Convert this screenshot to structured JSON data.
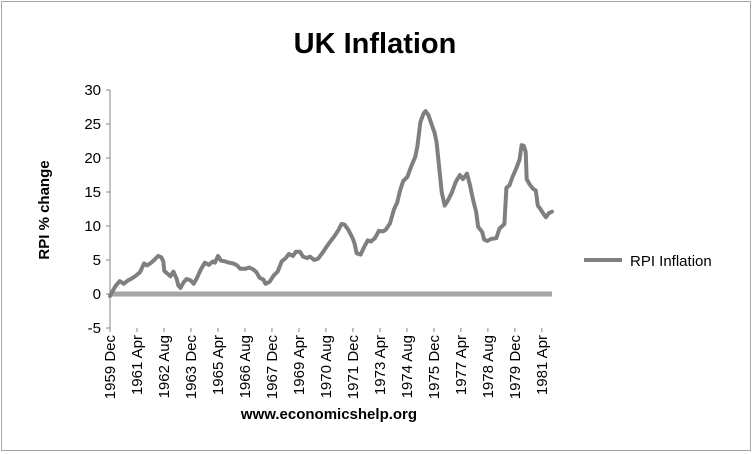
{
  "chart_data": {
    "type": "line",
    "title": "UK Inflation",
    "ylabel": "RPI % change",
    "xlabel": "www.economicshelp.org",
    "ylim": [
      -5,
      30
    ],
    "yticks": [
      -5,
      0,
      5,
      10,
      15,
      20,
      25,
      30
    ],
    "xlim": [
      1959.917,
      1981.75
    ],
    "x_ticks": [
      {
        "label": "1959 Dec",
        "x": 1959.917
      },
      {
        "label": "1961 Apr",
        "x": 1961.25
      },
      {
        "label": "1962 Aug",
        "x": 1962.583
      },
      {
        "label": "1963 Dec",
        "x": 1963.917
      },
      {
        "label": "1965 Apr",
        "x": 1965.25
      },
      {
        "label": "1966 Aug",
        "x": 1966.583
      },
      {
        "label": "1967 Dec",
        "x": 1967.917
      },
      {
        "label": "1969 Apr",
        "x": 1969.25
      },
      {
        "label": "1970 Aug",
        "x": 1970.583
      },
      {
        "label": "1971 Dec",
        "x": 1971.917
      },
      {
        "label": "1973 Apr",
        "x": 1973.25
      },
      {
        "label": "1974 Aug",
        "x": 1974.583
      },
      {
        "label": "1975 Dec",
        "x": 1975.917
      },
      {
        "label": "1977 Apr",
        "x": 1977.25
      },
      {
        "label": "1978 Aug",
        "x": 1978.583
      },
      {
        "label": "1979 Dec",
        "x": 1979.917
      },
      {
        "label": "1981 Apr",
        "x": 1981.25
      }
    ],
    "grid": false,
    "legend": "right",
    "line_color": "#7f7f7f",
    "series": [
      {
        "name": "RPI Inflation",
        "points": [
          [
            1959.917,
            -0.3
          ],
          [
            1960.0,
            0.2
          ],
          [
            1960.2,
            1.2
          ],
          [
            1960.4,
            1.9
          ],
          [
            1960.6,
            1.5
          ],
          [
            1960.8,
            2.0
          ],
          [
            1961.0,
            2.3
          ],
          [
            1961.2,
            2.7
          ],
          [
            1961.4,
            3.2
          ],
          [
            1961.6,
            4.5
          ],
          [
            1961.75,
            4.2
          ],
          [
            1961.95,
            4.6
          ],
          [
            1962.1,
            5.0
          ],
          [
            1962.3,
            5.6
          ],
          [
            1962.45,
            5.4
          ],
          [
            1962.55,
            4.8
          ],
          [
            1962.6,
            3.4
          ],
          [
            1962.75,
            3.0
          ],
          [
            1962.9,
            2.6
          ],
          [
            1963.05,
            3.3
          ],
          [
            1963.2,
            2.3
          ],
          [
            1963.3,
            1.2
          ],
          [
            1963.4,
            0.9
          ],
          [
            1963.55,
            1.7
          ],
          [
            1963.7,
            2.2
          ],
          [
            1963.9,
            2.0
          ],
          [
            1964.05,
            1.5
          ],
          [
            1964.2,
            2.3
          ],
          [
            1964.4,
            3.6
          ],
          [
            1964.6,
            4.6
          ],
          [
            1964.8,
            4.3
          ],
          [
            1965.0,
            4.8
          ],
          [
            1965.1,
            4.6
          ],
          [
            1965.25,
            5.6
          ],
          [
            1965.4,
            4.9
          ],
          [
            1965.6,
            4.8
          ],
          [
            1965.8,
            4.6
          ],
          [
            1966.0,
            4.5
          ],
          [
            1966.2,
            4.2
          ],
          [
            1966.35,
            3.7
          ],
          [
            1966.6,
            3.7
          ],
          [
            1966.8,
            3.9
          ],
          [
            1967.0,
            3.6
          ],
          [
            1967.15,
            3.2
          ],
          [
            1967.3,
            2.4
          ],
          [
            1967.5,
            2.1
          ],
          [
            1967.6,
            1.5
          ],
          [
            1967.8,
            1.8
          ],
          [
            1968.0,
            2.7
          ],
          [
            1968.2,
            3.3
          ],
          [
            1968.4,
            4.8
          ],
          [
            1968.6,
            5.3
          ],
          [
            1968.75,
            5.9
          ],
          [
            1968.95,
            5.6
          ],
          [
            1969.1,
            6.2
          ],
          [
            1969.3,
            6.2
          ],
          [
            1969.45,
            5.5
          ],
          [
            1969.65,
            5.3
          ],
          [
            1969.8,
            5.5
          ],
          [
            1970.0,
            5.0
          ],
          [
            1970.2,
            5.2
          ],
          [
            1970.4,
            6.0
          ],
          [
            1970.6,
            6.9
          ],
          [
            1970.8,
            7.7
          ],
          [
            1971.0,
            8.5
          ],
          [
            1971.2,
            9.4
          ],
          [
            1971.35,
            10.3
          ],
          [
            1971.5,
            10.2
          ],
          [
            1971.7,
            9.4
          ],
          [
            1971.9,
            8.2
          ],
          [
            1972.0,
            7.4
          ],
          [
            1972.1,
            6.0
          ],
          [
            1972.3,
            5.8
          ],
          [
            1972.45,
            6.8
          ],
          [
            1972.65,
            7.9
          ],
          [
            1972.8,
            7.7
          ],
          [
            1973.0,
            8.2
          ],
          [
            1973.2,
            9.3
          ],
          [
            1973.4,
            9.2
          ],
          [
            1973.55,
            9.5
          ],
          [
            1973.75,
            10.4
          ],
          [
            1973.95,
            12.5
          ],
          [
            1974.1,
            13.4
          ],
          [
            1974.25,
            15.3
          ],
          [
            1974.4,
            16.6
          ],
          [
            1974.6,
            17.2
          ],
          [
            1974.8,
            18.8
          ],
          [
            1975.0,
            20.2
          ],
          [
            1975.1,
            21.7
          ],
          [
            1975.25,
            25.3
          ],
          [
            1975.4,
            26.5
          ],
          [
            1975.5,
            26.9
          ],
          [
            1975.65,
            26.3
          ],
          [
            1975.8,
            25.0
          ],
          [
            1975.95,
            23.7
          ],
          [
            1976.05,
            22.3
          ],
          [
            1976.2,
            18.0
          ],
          [
            1976.3,
            15.0
          ],
          [
            1976.45,
            13.0
          ],
          [
            1976.6,
            13.7
          ],
          [
            1976.8,
            14.9
          ],
          [
            1977.0,
            16.5
          ],
          [
            1977.2,
            17.5
          ],
          [
            1977.35,
            16.9
          ],
          [
            1977.55,
            17.7
          ],
          [
            1977.7,
            16.0
          ],
          [
            1977.85,
            13.9
          ],
          [
            1978.0,
            12.1
          ],
          [
            1978.1,
            9.9
          ],
          [
            1978.3,
            9.1
          ],
          [
            1978.4,
            8.0
          ],
          [
            1978.55,
            7.8
          ],
          [
            1978.75,
            8.1
          ],
          [
            1979.0,
            8.2
          ],
          [
            1979.15,
            9.6
          ],
          [
            1979.4,
            10.3
          ],
          [
            1979.5,
            15.6
          ],
          [
            1979.65,
            16.0
          ],
          [
            1979.8,
            17.2
          ],
          [
            1980.0,
            18.6
          ],
          [
            1980.15,
            19.8
          ],
          [
            1980.25,
            21.9
          ],
          [
            1980.35,
            21.8
          ],
          [
            1980.45,
            20.9
          ],
          [
            1980.5,
            16.9
          ],
          [
            1980.65,
            16.1
          ],
          [
            1980.8,
            15.5
          ],
          [
            1980.95,
            15.2
          ],
          [
            1981.05,
            13.0
          ],
          [
            1981.15,
            12.6
          ],
          [
            1981.3,
            11.9
          ],
          [
            1981.45,
            11.3
          ],
          [
            1981.6,
            11.9
          ],
          [
            1981.75,
            12.1
          ]
        ]
      }
    ]
  }
}
